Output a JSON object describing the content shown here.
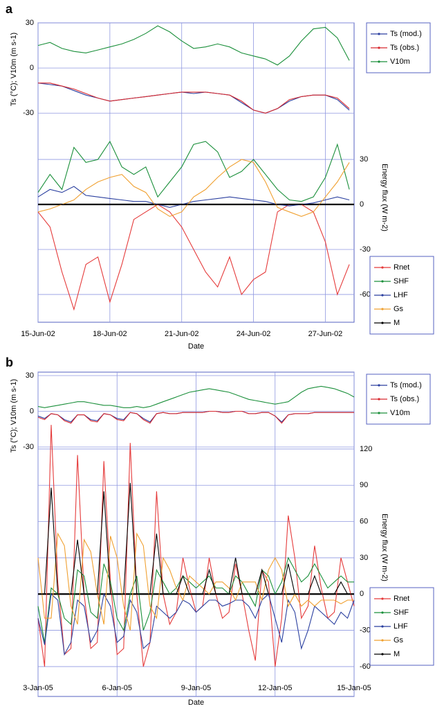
{
  "chart_data": [
    {
      "type": "line",
      "label": "a",
      "x_label": "Date",
      "y_label": "Ts (°C); V10m (m s-1)",
      "y2_label": "Energy flux (W m-2)",
      "x": [
        0,
        0.5,
        1,
        1.5,
        2,
        2.5,
        3,
        3.5,
        4,
        4.5,
        5,
        5.5,
        6,
        6.5,
        7,
        7.5,
        8,
        8.5,
        9,
        9.5,
        10,
        10.5,
        11,
        11.5,
        12,
        12.5,
        13
      ],
      "xlim": [
        0,
        13.2
      ],
      "xticks": [
        {
          "value": 0,
          "label": "15-Jun-02"
        },
        {
          "value": 3,
          "label": "18-Jun-02"
        },
        {
          "value": 6,
          "label": "21-Jun-02"
        },
        {
          "value": 9,
          "label": "24-Jun-02"
        },
        {
          "value": 12,
          "label": "27-Jun-02"
        }
      ],
      "ylim": [
        -169,
        30
      ],
      "yticks": [
        30,
        0,
        -30
      ],
      "y2lim": [
        -78.5,
        121
      ],
      "y2ticks": [
        30,
        0,
        -30,
        -60
      ],
      "grid": true,
      "series": [
        {
          "name": "Ts (mod.)",
          "color": "#2a3f9f",
          "values": [
            -10,
            -11,
            -12,
            -15,
            -18,
            -20,
            -22,
            -21,
            -20,
            -19,
            -18,
            -17,
            -16,
            -17,
            -16,
            -17,
            -18,
            -23,
            -28,
            -30,
            -27,
            -22,
            -19,
            -18,
            -18,
            -21,
            -28
          ]
        },
        {
          "name": "Ts (obs.)",
          "color": "#d8282e",
          "values": [
            -10,
            -10,
            -12,
            -14,
            -17,
            -20,
            -22,
            -21,
            -20,
            -19,
            -18,
            -17,
            -16,
            -16,
            -16,
            -17,
            -18,
            -22,
            -28,
            -30,
            -27,
            -21,
            -19,
            -18,
            -18,
            -20,
            -27
          ]
        },
        {
          "name": "V10m",
          "color": "#1a8f3a",
          "values": [
            15,
            17,
            13,
            11,
            10,
            12,
            14,
            16,
            19,
            23,
            28,
            24,
            18,
            13,
            14,
            16,
            14,
            10,
            8,
            6,
            2,
            8,
            18,
            26,
            27,
            20,
            5
          ]
        },
        {
          "name": "Rnet",
          "color": "#e53a3a",
          "axis": "y2",
          "values": [
            -5,
            -15,
            -45,
            -70,
            -40,
            -35,
            -65,
            -40,
            -10,
            -5,
            0,
            -5,
            -15,
            -30,
            -45,
            -55,
            -35,
            -60,
            -50,
            -45,
            -5,
            0,
            0,
            -5,
            -25,
            -60,
            -40
          ]
        },
        {
          "name": "SHF",
          "color": "#1a8f3a",
          "axis": "y2",
          "values": [
            8,
            20,
            10,
            38,
            28,
            30,
            42,
            25,
            20,
            25,
            5,
            15,
            25,
            40,
            42,
            35,
            18,
            22,
            30,
            20,
            10,
            3,
            2,
            5,
            18,
            40,
            10
          ]
        },
        {
          "name": "LHF",
          "color": "#2a3f9f",
          "axis": "y2",
          "values": [
            5,
            10,
            8,
            12,
            6,
            5,
            4,
            3,
            2,
            2,
            0,
            -2,
            0,
            2,
            3,
            4,
            5,
            4,
            3,
            2,
            0,
            -1,
            0,
            1,
            3,
            5,
            3
          ]
        },
        {
          "name": "Gs",
          "color": "#f0a030",
          "axis": "y2",
          "values": [
            -5,
            -3,
            0,
            3,
            10,
            15,
            18,
            20,
            12,
            8,
            -3,
            -8,
            -5,
            5,
            10,
            18,
            25,
            30,
            28,
            15,
            -2,
            -5,
            -8,
            -5,
            5,
            15,
            28
          ]
        },
        {
          "name": "M",
          "color": "#000000",
          "axis": "y2",
          "values": [
            0,
            0,
            0,
            0,
            0,
            0,
            0,
            0,
            0,
            0,
            0,
            0,
            0,
            0,
            0,
            0,
            0,
            0,
            0,
            0,
            0,
            0,
            0,
            0,
            0,
            0,
            0
          ]
        }
      ]
    },
    {
      "type": "line",
      "label": "b",
      "x_label": "Date",
      "y_label": "Ts (°C); V10m (m s-1)",
      "y2_label": "Energy flux (W m-2)",
      "x": [
        0,
        0.25,
        0.5,
        0.75,
        1,
        1.25,
        1.5,
        1.75,
        2,
        2.25,
        2.5,
        2.75,
        3,
        3.25,
        3.5,
        3.75,
        4,
        4.25,
        4.5,
        4.75,
        5,
        5.25,
        5.5,
        5.75,
        6,
        6.25,
        6.5,
        6.75,
        7,
        7.25,
        7.5,
        7.75,
        8,
        8.25,
        8.5,
        8.75,
        9,
        9.25,
        9.5,
        9.75,
        10,
        10.25,
        10.5,
        10.75,
        11,
        11.25,
        11.5,
        11.75,
        12
      ],
      "xlim": [
        0,
        12
      ],
      "xticks": [
        {
          "value": 0,
          "label": "3-Jan-05"
        },
        {
          "value": 3,
          "label": "6-Jan-05"
        },
        {
          "value": 6,
          "label": "9-Jan-05"
        },
        {
          "value": 9,
          "label": "12-Jan-05"
        },
        {
          "value": 12,
          "label": "15-Jan-05"
        }
      ],
      "ylim": [
        -239.7,
        32.9
      ],
      "yticks": [
        30,
        0,
        -30
      ],
      "y2lim": [
        -84.7,
        183.6
      ],
      "y2ticks": [
        120,
        90,
        60,
        30,
        0,
        -30,
        -60
      ],
      "grid": true,
      "series": [
        {
          "name": "Ts (mod.)",
          "color": "#2a3f9f",
          "values": [
            -4,
            -6,
            -2,
            -3,
            -7,
            -9,
            -3,
            -3,
            -7,
            -8,
            -2,
            -3,
            -6,
            -7,
            -1,
            -2,
            -6,
            -9,
            -2,
            -1,
            -2,
            -2,
            -1,
            -1,
            -1,
            -1,
            0,
            0,
            -1,
            -1,
            0,
            0,
            -2,
            -2,
            -1,
            -1,
            -4,
            -9,
            -3,
            -2,
            -2,
            -2,
            -1,
            -1,
            -1,
            -1,
            -1,
            -1,
            -1
          ]
        },
        {
          "name": "Ts (obs.)",
          "color": "#d8282e",
          "values": [
            -5,
            -7,
            -2,
            -3,
            -8,
            -10,
            -3,
            -3,
            -8,
            -9,
            -2,
            -3,
            -7,
            -8,
            -1,
            -2,
            -7,
            -10,
            -2,
            -1,
            -2,
            -2,
            -1,
            -1,
            -1,
            -1,
            0,
            0,
            -1,
            -1,
            0,
            0,
            -2,
            -2,
            -1,
            -1,
            -4,
            -10,
            -3,
            -2,
            -2,
            -2,
            -1,
            -1,
            -1,
            -1,
            -1,
            -1,
            -1
          ]
        },
        {
          "name": "V10m",
          "color": "#1a8f3a",
          "values": [
            4,
            3,
            4,
            5,
            6,
            7,
            8,
            8,
            7,
            6,
            5,
            5,
            4,
            3,
            3,
            4,
            3,
            4,
            6,
            8,
            10,
            12,
            14,
            16,
            17,
            18,
            19,
            18,
            17,
            16,
            14,
            12,
            10,
            9,
            8,
            7,
            6,
            7,
            8,
            12,
            16,
            19,
            20,
            21,
            20,
            19,
            17,
            15,
            12
          ]
        },
        {
          "name": "Rnet",
          "color": "#e53a3a",
          "axis": "y2",
          "values": [
            -20,
            -60,
            140,
            10,
            -50,
            -45,
            115,
            0,
            -45,
            -40,
            110,
            10,
            -50,
            -45,
            125,
            0,
            -60,
            -40,
            85,
            0,
            -25,
            -15,
            30,
            5,
            -15,
            -10,
            30,
            0,
            -20,
            -15,
            25,
            0,
            -30,
            -55,
            20,
            10,
            -60,
            -20,
            65,
            30,
            -20,
            -10,
            40,
            5,
            -20,
            -15,
            30,
            10,
            -10
          ]
        },
        {
          "name": "SHF",
          "color": "#1a8f3a",
          "axis": "y2",
          "values": [
            -10,
            -40,
            5,
            0,
            -20,
            -25,
            20,
            15,
            -15,
            -20,
            25,
            10,
            -20,
            -30,
            0,
            15,
            -30,
            -15,
            20,
            10,
            0,
            5,
            15,
            10,
            5,
            10,
            15,
            5,
            5,
            0,
            15,
            10,
            0,
            -10,
            20,
            15,
            0,
            10,
            30,
            20,
            10,
            15,
            25,
            15,
            5,
            10,
            15,
            10,
            10
          ]
        },
        {
          "name": "LHF",
          "color": "#2a3f9f",
          "axis": "y2",
          "values": [
            -20,
            -42,
            0,
            -5,
            -50,
            -40,
            -5,
            -10,
            -40,
            -30,
            0,
            -10,
            -40,
            -35,
            -5,
            -15,
            -45,
            -40,
            -10,
            -15,
            -20,
            -15,
            -5,
            -8,
            -15,
            -10,
            -5,
            -5,
            -10,
            -8,
            -5,
            -5,
            -10,
            -20,
            -5,
            0,
            -20,
            -40,
            -5,
            -15,
            -45,
            -30,
            -10,
            -15,
            -20,
            -25,
            -15,
            -20,
            -5
          ]
        },
        {
          "name": "Gs",
          "color": "#f0a030",
          "axis": "y2",
          "values": [
            30,
            -20,
            -20,
            50,
            40,
            -10,
            -25,
            45,
            35,
            0,
            -25,
            48,
            30,
            -10,
            -30,
            50,
            40,
            -10,
            -20,
            30,
            20,
            5,
            -5,
            15,
            10,
            5,
            0,
            10,
            10,
            5,
            -5,
            10,
            10,
            10,
            -5,
            20,
            30,
            20,
            -10,
            0,
            -10,
            -5,
            -10,
            -5,
            -5,
            -5,
            -8,
            -5,
            -5
          ]
        },
        {
          "name": "M",
          "color": "#000000",
          "axis": "y2",
          "values": [
            0,
            0,
            88,
            0,
            0,
            0,
            45,
            0,
            0,
            0,
            85,
            0,
            0,
            0,
            92,
            0,
            0,
            0,
            50,
            0,
            0,
            0,
            15,
            0,
            0,
            0,
            20,
            0,
            0,
            0,
            30,
            0,
            0,
            0,
            20,
            0,
            0,
            0,
            25,
            0,
            0,
            0,
            15,
            0,
            0,
            0,
            10,
            0,
            0
          ]
        }
      ]
    }
  ]
}
